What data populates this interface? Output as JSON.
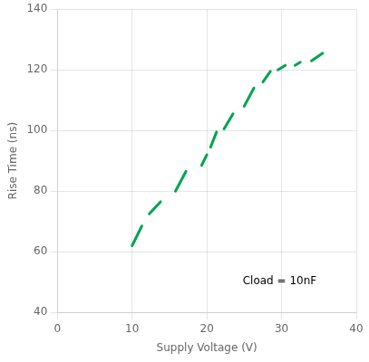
{
  "chart_data": {
    "type": "line",
    "xlabel": "Supply Voltage (V)",
    "ylabel": "Rise Time (ns)",
    "annotation": "Cload = 10nF",
    "xlim": [
      0,
      40
    ],
    "ylim": [
      40,
      140
    ],
    "xticks": [
      0,
      10,
      20,
      30,
      40
    ],
    "yticks": [
      40,
      60,
      80,
      100,
      120,
      140
    ],
    "color": "#00A550",
    "grid": true,
    "series": [
      {
        "x": [
          10.0,
          11.3
        ],
        "values": [
          62.0,
          68.5
        ]
      },
      {
        "x": [
          12.3,
          13.8
        ],
        "values": [
          72.5,
          76.5
        ]
      },
      {
        "x": [
          15.8,
          17.2
        ],
        "values": [
          80.0,
          86.5
        ]
      },
      {
        "x": [
          19.3,
          20.0
        ],
        "values": [
          88.5,
          92.0
        ]
      },
      {
        "x": [
          20.5,
          21.3
        ],
        "values": [
          94.5,
          99.5
        ]
      },
      {
        "x": [
          22.3,
          23.5
        ],
        "values": [
          100.5,
          105.5
        ]
      },
      {
        "x": [
          25.0,
          26.3
        ],
        "values": [
          108.0,
          114.0
        ]
      },
      {
        "x": [
          27.5,
          28.5
        ],
        "values": [
          116.0,
          119.5
        ]
      },
      {
        "x": [
          29.5,
          30.5
        ],
        "values": [
          120.0,
          121.5
        ]
      },
      {
        "x": [
          31.8,
          32.5
        ],
        "values": [
          121.5,
          122.5
        ]
      },
      {
        "x": [
          34.0,
          35.5
        ],
        "values": [
          123.0,
          125.5
        ]
      }
    ]
  }
}
